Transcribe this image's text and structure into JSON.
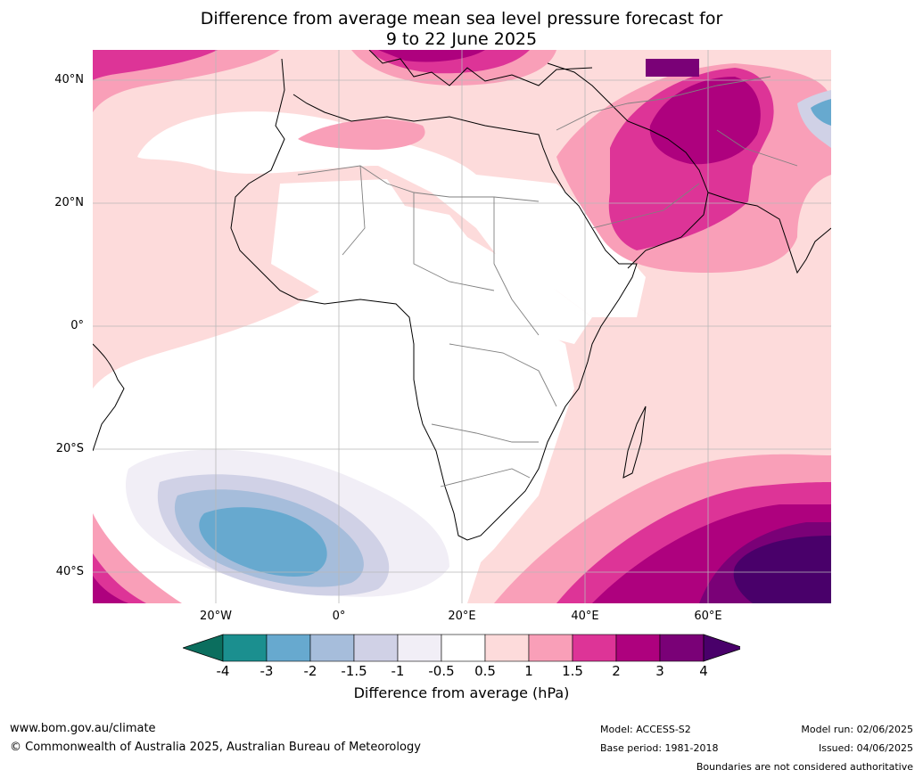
{
  "title_line1": "Difference from average mean sea level pressure forecast for",
  "title_line2": "9 to 22 June 2025",
  "lat_labels": [
    {
      "value": 40,
      "text": "40°N"
    },
    {
      "value": 20,
      "text": "20°N"
    },
    {
      "value": 0,
      "text": "0°"
    },
    {
      "value": -20,
      "text": "20°S"
    },
    {
      "value": -40,
      "text": "40°S"
    }
  ],
  "lon_labels": [
    {
      "value": -20,
      "text": "20°W"
    },
    {
      "value": 0,
      "text": "0°"
    },
    {
      "value": 20,
      "text": "20°E"
    },
    {
      "value": 40,
      "text": "40°E"
    },
    {
      "value": 60,
      "text": "60°E"
    }
  ],
  "colorbar": {
    "title": "Difference from average (hPa)",
    "ticks": [
      "-4",
      "-3",
      "-2",
      "-1.5",
      "-1",
      "-0.5",
      "0.5",
      "1",
      "1.5",
      "2",
      "3",
      "4"
    ],
    "colors": [
      "#1b8f8f",
      "#67a9cf",
      "#a6bddb",
      "#d0d1e6",
      "#f1eef6",
      "#ffffff",
      "#fddbdb",
      "#f99fb8",
      "#dd3497",
      "#ae017e",
      "#7a0177"
    ],
    "under_color": "#0b6e5e",
    "over_color": "#49006a"
  },
  "footer": {
    "url": "www.bom.gov.au/climate",
    "copyright": "© Commonwealth of Australia 2025, Australian Bureau of Meteorology",
    "model": "Model: ACCESS-S2",
    "base_period": "Base period: 1981-2018",
    "model_run": "Model run: 02/06/2025",
    "issued": "Issued: 04/06/2025",
    "disclaimer": "Boundaries are not considered authoritative"
  }
}
